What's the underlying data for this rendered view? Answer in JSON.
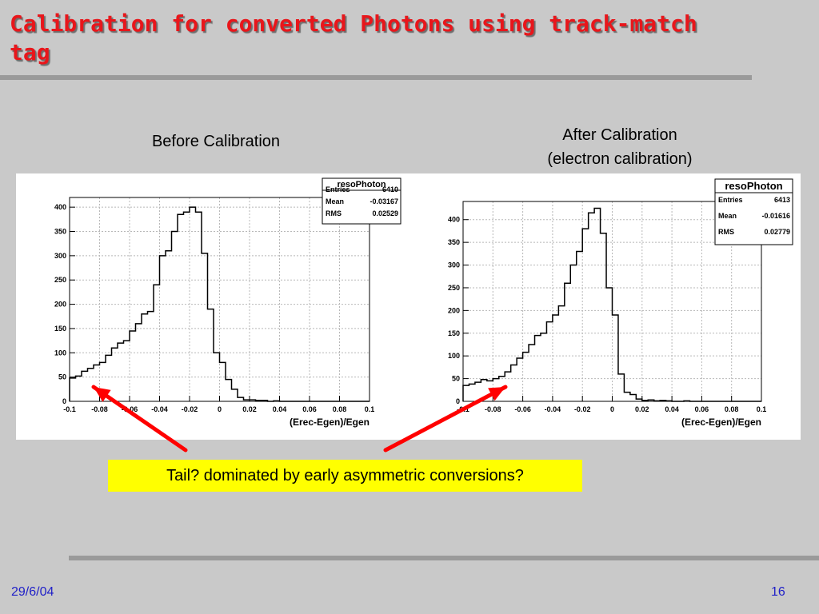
{
  "slide": {
    "title": "Calibration for converted Photons using track-match tag",
    "caption_left": "Before Calibration",
    "caption_right_line1": "After Calibration",
    "caption_right_line2": "(electron calibration)",
    "callout": "Tail? dominated by early asymmetric conversions?",
    "footer_date": "29/6/04",
    "footer_page": "16",
    "colors": {
      "title": "#e8161b",
      "arrow": "#ff0000",
      "callout_bg": "#ffff00",
      "footer": "#1f1fc8"
    }
  },
  "chart_data": [
    {
      "type": "bar",
      "histogram": true,
      "xlabel": "(Erec-Egen)/Egen",
      "xlim": [
        -0.1,
        0.1
      ],
      "ylim": [
        0,
        420
      ],
      "x_ticks": [
        -0.1,
        -0.08,
        -0.06,
        -0.04,
        -0.02,
        0,
        0.02,
        0.04,
        0.06,
        0.08,
        0.1
      ],
      "x_tick_labels": [
        "-0.1",
        "-0.08",
        "-0.06",
        "-0.04",
        "-0.02",
        "0",
        "0.02",
        "0.04",
        "0.06",
        "0.08",
        "0.1"
      ],
      "y_ticks": [
        0,
        50,
        100,
        150,
        200,
        250,
        300,
        350,
        400
      ],
      "y_tick_labels": [
        "0",
        "50",
        "100",
        "150",
        "200",
        "250",
        "300",
        "350",
        "400"
      ],
      "grid": true,
      "stats": {
        "name": "resoPhoton",
        "rows": [
          [
            "Entries",
            "6410"
          ],
          [
            "Mean",
            "-0.03167"
          ],
          [
            "RMS",
            "0.02529"
          ]
        ]
      },
      "bin_edges_start": -0.1,
      "bin_width": 0.004,
      "values": [
        48,
        52,
        62,
        68,
        75,
        80,
        95,
        110,
        120,
        125,
        145,
        160,
        180,
        185,
        240,
        300,
        310,
        350,
        385,
        390,
        400,
        390,
        305,
        190,
        100,
        80,
        45,
        25,
        8,
        3,
        3,
        2,
        2,
        0,
        1,
        0,
        0,
        0,
        0,
        0
      ]
    },
    {
      "type": "bar",
      "histogram": true,
      "xlabel": "(Erec-Egen)/Egen",
      "xlim": [
        -0.1,
        0.1
      ],
      "ylim": [
        0,
        440
      ],
      "x_ticks": [
        -0.1,
        -0.08,
        -0.06,
        -0.04,
        -0.02,
        0,
        0.02,
        0.04,
        0.06,
        0.08,
        0.1
      ],
      "x_tick_labels": [
        "-0.1",
        "-0.08",
        "-0.06",
        "-0.04",
        "-0.02",
        "0",
        "0.02",
        "0.04",
        "0.06",
        "0.08",
        "0.1"
      ],
      "y_ticks": [
        0,
        50,
        100,
        150,
        200,
        250,
        300,
        350,
        400
      ],
      "y_tick_labels": [
        "0",
        "50",
        "100",
        "150",
        "200",
        "250",
        "300",
        "350",
        "400"
      ],
      "grid": true,
      "stats": {
        "name": "resoPhoton",
        "rows": [
          [
            "Entries",
            "6413"
          ],
          [
            "Mean",
            "-0.01616"
          ],
          [
            "RMS",
            "0.02779"
          ]
        ]
      },
      "bin_edges_start": -0.1,
      "bin_width": 0.004,
      "values": [
        35,
        38,
        42,
        48,
        45,
        50,
        55,
        65,
        80,
        95,
        108,
        125,
        145,
        150,
        175,
        190,
        210,
        260,
        300,
        330,
        380,
        415,
        425,
        370,
        250,
        190,
        60,
        20,
        15,
        5,
        2,
        3,
        1,
        2,
        1,
        0,
        0,
        1,
        0,
        0
      ]
    }
  ]
}
